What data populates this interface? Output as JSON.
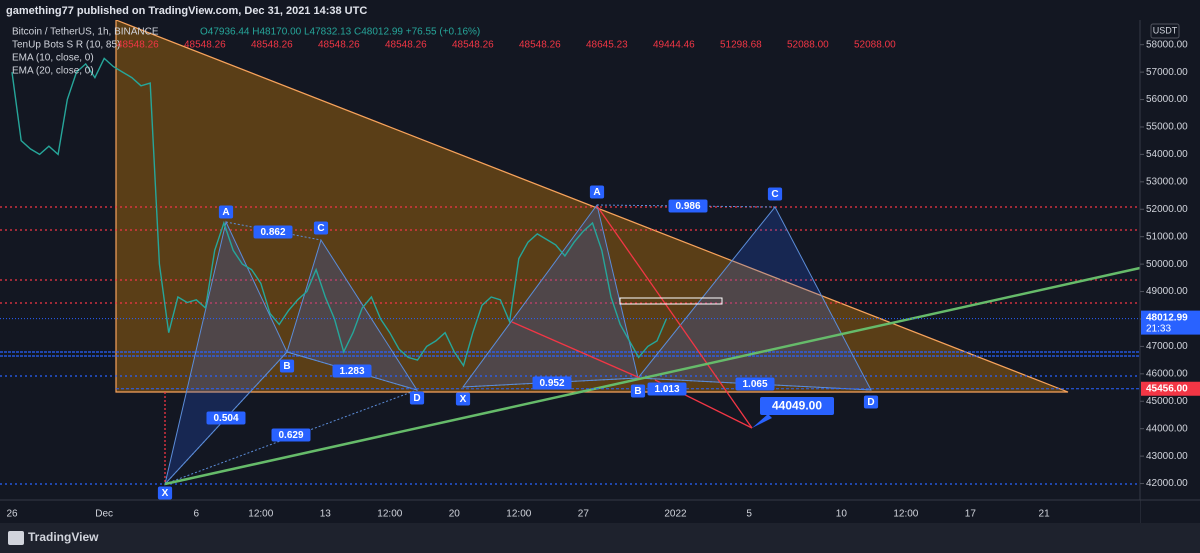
{
  "header": "gamething77 published on TradingView.com, Dec 31, 2021 14:38 UTC",
  "legend": {
    "symbol": "Bitcoin / TetherUS, 1h, BINANCE",
    "ohlc": "O47936.44 H48170.00 L47832.13 C48012.99 +76.55 (+0.16%)",
    "indicator": "TenUp Bots S R (10, 85)",
    "indicator_values": [
      "48548.26",
      "48548.26",
      "48548.26",
      "48548.26",
      "48548.26",
      "48548.26",
      "48548.26",
      "48645.23",
      "49444.46",
      "51298.68",
      "52088.00",
      "52088.00"
    ],
    "ema_1": "EMA (10, close, 0)",
    "ema_2": "EMA (20, close, 0)"
  },
  "currency": "USDT",
  "chart_data": {
    "type": "line",
    "color": "#26a69a",
    "categories": [
      "26",
      null,
      null,
      null,
      null,
      null,
      null,
      null,
      null,
      null,
      "Dec",
      null,
      null,
      null,
      null,
      null,
      null,
      null,
      null,
      null,
      "6",
      null,
      null,
      null,
      null,
      null,
      null,
      "12:00",
      null,
      null,
      null,
      null,
      null,
      null,
      "13",
      null,
      null,
      null,
      null,
      null,
      null,
      "12:00",
      null,
      null,
      null,
      null,
      null,
      null,
      "20",
      null,
      null,
      null,
      null,
      null,
      null,
      "12:00",
      null,
      null,
      null,
      null,
      null,
      null,
      "27",
      null,
      null,
      null,
      null,
      null,
      null,
      null,
      null,
      null,
      "2022",
      null,
      null,
      null,
      null,
      null,
      null,
      null,
      "5",
      null,
      null,
      null,
      null,
      null,
      null,
      null,
      null,
      null,
      "10",
      null,
      null,
      null,
      null,
      null,
      null,
      "12:00",
      null,
      null,
      null,
      null,
      null,
      null,
      "17",
      null,
      null,
      null,
      null,
      null,
      null,
      null,
      "21",
      null,
      null,
      null,
      null,
      null,
      null,
      null,
      null,
      null,
      null
    ],
    "values": [
      57000,
      54500,
      54200,
      54000,
      54300,
      54000,
      56000,
      57000,
      57300,
      56800,
      57500,
      57200,
      57000,
      56800,
      56500,
      56600,
      50000,
      47500,
      48800,
      48600,
      48700,
      48400,
      50500,
      51500,
      50500,
      50000,
      49800,
      49300,
      48200,
      47800,
      48300,
      48700,
      49000,
      49800,
      48800,
      48000,
      46800,
      47500,
      48400,
      48800,
      48000,
      47500,
      46900,
      46600,
      46500,
      47000,
      47200,
      47500,
      46800,
      46300,
      47500,
      48500,
      48800,
      48700,
      47900,
      50200,
      50800,
      51100,
      50900,
      50700,
      50300,
      50800,
      51200,
      51500,
      50500,
      48800,
      47800,
      47200,
      46600,
      47000,
      47200,
      48000,
      null,
      null,
      null,
      null,
      null,
      null,
      null,
      null,
      null,
      null,
      null,
      null,
      null,
      null,
      null,
      null,
      null,
      null,
      null,
      null,
      null,
      null,
      null,
      null,
      null,
      null,
      null,
      null,
      null,
      null,
      null,
      null,
      null,
      null,
      null,
      null,
      null,
      null,
      null,
      null,
      null,
      null,
      null,
      null,
      null,
      null,
      null,
      null,
      null,
      null,
      null
    ],
    "ylim": [
      41400,
      58900
    ],
    "yticks": [
      {
        "value": 42000,
        "label": "42000.00"
      },
      {
        "value": 43000,
        "label": "43000.00"
      },
      {
        "value": 44000,
        "label": "44000.00"
      },
      {
        "value": 45000,
        "label": "45000.00"
      },
      {
        "value": 46000,
        "label": "46000.00"
      },
      {
        "value": 47000,
        "label": "47000.00"
      },
      {
        "value": 48000,
        "label": "48000.00"
      },
      {
        "value": 49000,
        "label": "49000.00"
      },
      {
        "value": 50000,
        "label": "50000.00"
      },
      {
        "value": 51000,
        "label": "51000.00"
      },
      {
        "value": 52000,
        "label": "52000.00"
      },
      {
        "value": 53000,
        "label": "53000.00"
      },
      {
        "value": 54000,
        "label": "54000.00"
      },
      {
        "value": 55000,
        "label": "55000.00"
      },
      {
        "value": 56000,
        "label": "56000.00"
      },
      {
        "value": 57000,
        "label": "57000.00"
      },
      {
        "value": 58000,
        "label": "58000.00"
      }
    ],
    "grid": false,
    "last_price": 48012.99,
    "countdown": "21:33",
    "level": {
      "value": 45456,
      "label": "45456.00"
    }
  },
  "drawings": {
    "pattern_1": {
      "points": [
        "X",
        "A",
        "B",
        "C",
        "D"
      ],
      "ratios": [
        0.862,
        1.283,
        0.504,
        0.629
      ]
    },
    "pattern_2": {
      "points": [
        "X",
        "A",
        "B",
        "C",
        "D"
      ],
      "ratios": [
        0.986,
        0.952,
        1.013,
        1.065
      ]
    },
    "target": "44049.00"
  },
  "footer": "TradingView"
}
